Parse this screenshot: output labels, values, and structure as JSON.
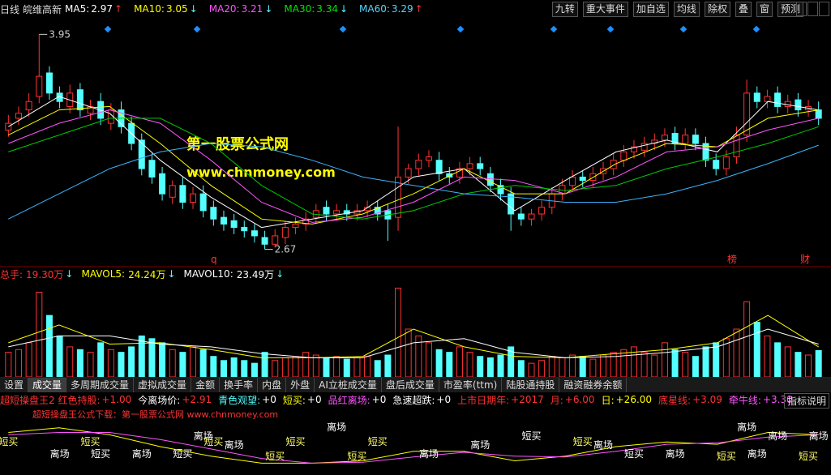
{
  "toolbar": {
    "period": "日线",
    "stock": "皖维高新",
    "ma_items": [
      {
        "label": "MA5:",
        "value": "2.97",
        "arrow": "↑",
        "color": "#ffffff",
        "arrow_color": "#ff3232"
      },
      {
        "label": "MA10:",
        "value": "3.05",
        "arrow": "↓",
        "color": "#ffff00",
        "arrow_color": "#54ffff"
      },
      {
        "label": "MA20:",
        "value": "3.21",
        "arrow": "↓",
        "color": "#ff55ff",
        "arrow_color": "#54ffff"
      },
      {
        "label": "MA30:",
        "value": "3.34",
        "arrow": "↓",
        "color": "#00e600",
        "arrow_color": "#54ffff"
      },
      {
        "label": "MA60:",
        "value": "3.29",
        "arrow": "↑",
        "color": "#54d8ff",
        "arrow_color": "#ff3232"
      }
    ],
    "buttons": [
      "九转",
      "重大事件",
      "加自选",
      "均线",
      "除权",
      "叠",
      "窗",
      "预测"
    ]
  },
  "watermark": {
    "title": "第一股票公式网",
    "url": "www.chnmoney.com"
  },
  "price_panel": {
    "type": "candlestick",
    "ylim": [
      2.6,
      4.0
    ],
    "up_color": "#ff3232",
    "down_color": "#54ffff",
    "high_label": "3.95",
    "low_label": "2.67",
    "markers": [
      "q",
      "榜",
      "财"
    ],
    "open": [
      3.38,
      3.45,
      3.5,
      3.58,
      3.72,
      3.6,
      3.52,
      3.62,
      3.48,
      3.55,
      3.42,
      3.5,
      3.42,
      3.32,
      3.2,
      3.12,
      2.98,
      3.05,
      2.95,
      3.0,
      2.92,
      2.86,
      2.84,
      2.8,
      2.78,
      2.74,
      2.7,
      2.74,
      2.8,
      2.82,
      2.86,
      2.92,
      2.88,
      2.9,
      2.88,
      2.9,
      2.92,
      2.9,
      2.86,
      3.1,
      3.15,
      3.2,
      3.2,
      3.12,
      3.1,
      3.15,
      3.18,
      3.12,
      3.05,
      3.0,
      2.88,
      2.85,
      2.88,
      2.92,
      3.0,
      3.05,
      3.1,
      3.08,
      3.12,
      3.15,
      3.2,
      3.25,
      3.26,
      3.3,
      3.32,
      3.36,
      3.3,
      3.35,
      3.3,
      3.2,
      3.15,
      3.22,
      3.35,
      3.6,
      3.55,
      3.6,
      3.52,
      3.56,
      3.5,
      3.5
    ],
    "close": [
      3.42,
      3.48,
      3.55,
      3.7,
      3.6,
      3.55,
      3.6,
      3.5,
      3.52,
      3.45,
      3.5,
      3.4,
      3.3,
      3.15,
      3.1,
      3.0,
      3.05,
      2.95,
      3.0,
      2.9,
      2.85,
      2.82,
      2.8,
      2.78,
      2.75,
      2.7,
      2.75,
      2.8,
      2.82,
      2.85,
      2.9,
      2.88,
      2.9,
      2.88,
      2.9,
      2.92,
      2.88,
      2.85,
      3.1,
      3.15,
      3.2,
      3.22,
      3.12,
      3.1,
      3.15,
      3.18,
      3.15,
      3.05,
      3.0,
      2.88,
      2.85,
      2.88,
      2.92,
      3.0,
      3.05,
      3.1,
      3.08,
      3.12,
      3.15,
      3.2,
      3.25,
      3.28,
      3.3,
      3.32,
      3.35,
      3.3,
      3.35,
      3.3,
      3.2,
      3.15,
      3.22,
      3.35,
      3.6,
      3.55,
      3.58,
      3.52,
      3.55,
      3.5,
      3.52,
      3.45
    ],
    "high": [
      3.47,
      3.52,
      3.6,
      3.95,
      3.76,
      3.64,
      3.65,
      3.66,
      3.56,
      3.6,
      3.54,
      3.55,
      3.46,
      3.36,
      3.24,
      3.16,
      3.08,
      3.1,
      3.04,
      3.05,
      2.96,
      2.9,
      2.88,
      2.84,
      2.82,
      2.78,
      2.79,
      2.84,
      2.86,
      2.89,
      2.94,
      2.96,
      2.94,
      2.94,
      2.94,
      2.96,
      2.96,
      2.94,
      3.4,
      3.18,
      3.24,
      3.26,
      3.25,
      3.16,
      3.19,
      3.22,
      3.22,
      3.16,
      3.09,
      3.04,
      2.92,
      2.91,
      2.96,
      3.04,
      3.09,
      3.14,
      3.14,
      3.16,
      3.19,
      3.24,
      3.29,
      3.32,
      3.34,
      3.36,
      3.39,
      3.4,
      3.39,
      3.39,
      3.34,
      3.24,
      3.26,
      3.4,
      3.68,
      3.64,
      3.62,
      3.64,
      3.59,
      3.6,
      3.56,
      3.55
    ],
    "low": [
      3.34,
      3.41,
      3.46,
      3.54,
      3.56,
      3.51,
      3.48,
      3.46,
      3.44,
      3.41,
      3.38,
      3.36,
      3.26,
      3.11,
      3.06,
      2.96,
      2.94,
      2.91,
      2.91,
      2.86,
      2.81,
      2.78,
      2.76,
      2.74,
      2.71,
      2.67,
      2.68,
      2.7,
      2.76,
      2.78,
      2.82,
      2.84,
      2.84,
      2.84,
      2.84,
      2.86,
      2.84,
      2.72,
      2.78,
      3.06,
      3.11,
      3.16,
      3.08,
      3.06,
      3.06,
      3.11,
      3.11,
      3.01,
      2.96,
      2.78,
      2.81,
      2.81,
      2.84,
      2.88,
      2.96,
      3.01,
      3.04,
      3.04,
      3.08,
      3.11,
      3.16,
      3.21,
      3.22,
      3.26,
      3.28,
      3.26,
      3.26,
      3.26,
      3.16,
      3.11,
      3.11,
      3.18,
      3.31,
      3.51,
      3.51,
      3.48,
      3.48,
      3.46,
      3.46,
      3.41
    ],
    "ma_lines": [
      {
        "name": "MA5",
        "color": "#ffffff",
        "values": [
          3.4,
          3.58,
          3.48,
          3.2,
          2.98,
          2.8,
          2.85,
          2.9,
          3.1,
          3.15,
          2.9,
          3.08,
          3.25,
          3.32,
          3.25,
          3.55,
          3.5
        ]
      },
      {
        "name": "MA10",
        "color": "#ffff00",
        "values": [
          3.35,
          3.5,
          3.52,
          3.3,
          3.05,
          2.85,
          2.82,
          2.88,
          3.0,
          3.15,
          3.0,
          3.0,
          3.18,
          3.3,
          3.28,
          3.45,
          3.5
        ]
      },
      {
        "name": "MA20",
        "color": "#ff55ff",
        "values": [
          3.3,
          3.42,
          3.5,
          3.42,
          3.2,
          2.95,
          2.83,
          2.86,
          2.95,
          3.1,
          3.08,
          3.0,
          3.1,
          3.25,
          3.28,
          3.38,
          3.45
        ]
      },
      {
        "name": "MA30",
        "color": "#00c800",
        "values": [
          3.25,
          3.35,
          3.45,
          3.45,
          3.3,
          3.05,
          2.88,
          2.85,
          2.9,
          3.0,
          3.05,
          3.02,
          3.05,
          3.15,
          3.22,
          3.3,
          3.4
        ]
      },
      {
        "name": "MA60",
        "color": "#3cb4ff",
        "values": [
          2.85,
          3.0,
          3.15,
          3.25,
          3.3,
          3.28,
          3.2,
          3.1,
          3.05,
          3.0,
          2.98,
          2.95,
          2.95,
          3.0,
          3.08,
          3.18,
          3.29
        ]
      }
    ]
  },
  "volume_panel": {
    "type": "bar",
    "header": [
      {
        "label": "总手:",
        "value": "19.30万",
        "arrow": "↓",
        "color": "#ff3232"
      },
      {
        "label": "MAVOL5:",
        "value": "24.24万",
        "arrow": "↓",
        "color": "#ffff00"
      },
      {
        "label": "MAVOL10:",
        "value": "23.49万",
        "arrow": "↓",
        "color": "#ffffff"
      }
    ],
    "ylim": [
      0,
      70
    ],
    "values": [
      18,
      20,
      25,
      62,
      45,
      30,
      22,
      20,
      18,
      25,
      20,
      18,
      22,
      30,
      28,
      25,
      20,
      18,
      22,
      20,
      15,
      12,
      14,
      12,
      10,
      18,
      12,
      14,
      15,
      18,
      16,
      14,
      15,
      13,
      14,
      15,
      12,
      16,
      65,
      35,
      30,
      25,
      20,
      18,
      22,
      18,
      15,
      14,
      16,
      22,
      12,
      10,
      12,
      15,
      14,
      16,
      15,
      13,
      16,
      18,
      20,
      22,
      18,
      16,
      25,
      20,
      18,
      15,
      22,
      25,
      28,
      35,
      55,
      40,
      30,
      25,
      22,
      18,
      16,
      19.3
    ],
    "ma_lines": [
      {
        "name": "MAVOL5",
        "color": "#ffff00",
        "values": [
          25,
          38,
          24,
          25,
          20,
          14,
          14,
          15,
          35,
          22,
          15,
          14,
          17,
          20,
          25,
          45,
          22
        ]
      },
      {
        "name": "MAVOL10",
        "color": "#ffffff",
        "values": [
          22,
          30,
          30,
          24,
          22,
          17,
          14,
          14,
          25,
          28,
          18,
          14,
          15,
          18,
          22,
          35,
          24
        ]
      }
    ]
  },
  "tabs": {
    "items": [
      "设置",
      "成交量",
      "多周期成交量",
      "虚拟成交量",
      "金额",
      "换手率",
      "内盘",
      "外盘",
      "AI立桩成交量",
      "盘后成交量",
      "市盈率(ttm)",
      "陆股通持股",
      "融资融券余额"
    ],
    "active": "成交量"
  },
  "indicator_panel": {
    "type": "line",
    "header": [
      {
        "label": "超短操盘王2 红色持股:",
        "value": "+1.00",
        "color": "#ff3232",
        "value_color": "#ff3232"
      },
      {
        "label": "今离场价:",
        "value": "+2.91",
        "color": "#ffffff",
        "value_color": "#ff3232"
      },
      {
        "label": "青色观望:",
        "value": "+0",
        "color": "#54ffff",
        "value_color": "#ffffff"
      },
      {
        "label": "短买:",
        "value": "+0",
        "color": "#ffff00",
        "value_color": "#ffffff"
      },
      {
        "label": "品红离场:",
        "value": "+0",
        "color": "#ff55ff",
        "value_color": "#ffffff"
      },
      {
        "label": "急速超跌:",
        "value": "+0",
        "color": "#ffffff",
        "value_color": "#ffffff"
      },
      {
        "label": "上市日期年:",
        "value": "+2017",
        "color": "#ff3232",
        "value_color": "#ff3232"
      },
      {
        "label": "月:",
        "value": "+6.00",
        "color": "#ff3232",
        "value_color": "#ff3232"
      },
      {
        "label": "日:",
        "value": "+26.00",
        "color": "#ffff00",
        "value_color": "#ffff00"
      },
      {
        "label": "底星线:",
        "value": "+3.09",
        "color": "#ff3232",
        "value_color": "#ff3232"
      },
      {
        "label": "牵牛线:",
        "value": "+3.30",
        "color": "#ff55ff",
        "value_color": "#ff55ff"
      }
    ],
    "help": "指标说明",
    "download_note": "超短操盘王公式下载：第一股票公式网 www.chnmoney.com",
    "ylim": [
      2.6,
      3.8
    ],
    "lines": [
      {
        "name": "今离场价",
        "color": "#ffff00",
        "values": [
          3.5,
          3.6,
          3.45,
          3.2,
          3.0,
          2.85,
          2.85,
          2.9,
          3.1,
          3.1,
          2.9,
          3.0,
          3.2,
          3.3,
          3.25,
          3.5,
          3.45
        ]
      },
      {
        "name": "品红离场",
        "color": "#ff55ff",
        "values": [
          3.45,
          3.5,
          3.5,
          3.35,
          3.15,
          2.95,
          2.85,
          2.87,
          2.98,
          3.08,
          3.0,
          2.98,
          3.1,
          3.25,
          3.28,
          3.4,
          3.45
        ]
      }
    ],
    "signals": [
      "短买",
      null,
      null,
      null,
      null,
      "离场",
      null,
      null,
      "短买",
      "短买",
      null,
      null,
      null,
      "离场",
      null,
      null,
      null,
      "短买",
      null,
      "离场",
      "短买",
      null,
      "离场",
      null,
      null,
      null,
      "短买",
      null,
      "短买",
      null,
      null,
      null,
      "离场",
      null,
      "短买",
      null,
      "短买",
      null,
      null,
      null,
      null,
      "离场",
      null,
      null,
      null,
      null,
      "离场",
      null,
      null,
      null,
      null,
      "短买",
      null,
      null,
      null,
      null,
      "短买",
      null,
      "离场",
      null,
      null,
      "短买",
      null,
      null,
      null,
      "离场",
      null,
      null,
      null,
      null,
      "短买",
      null,
      "离场",
      "离场",
      null,
      "离场",
      null,
      null,
      "短买",
      "离场"
    ]
  }
}
